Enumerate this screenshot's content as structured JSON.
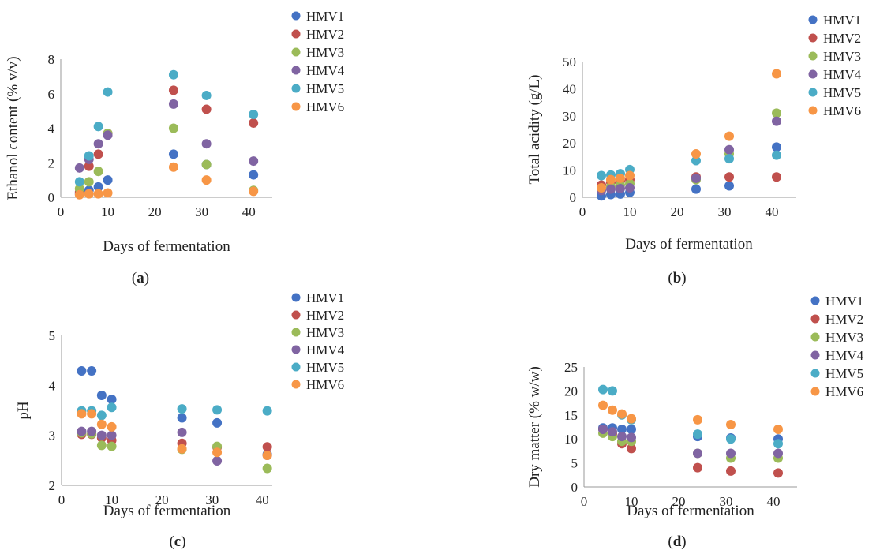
{
  "chart_data": [
    {
      "type": "scatter",
      "panel_label": "a",
      "xlabel": "Days of fermentation",
      "ylabel": "Ethanol content (% v/v)",
      "xlim": [
        0,
        45
      ],
      "ylim": [
        0,
        8
      ],
      "xticks": [
        "0",
        "10",
        "20",
        "30",
        "40"
      ],
      "yticks": [
        "0",
        "2",
        "4",
        "6",
        "8"
      ],
      "grid": false,
      "legend": "right",
      "x": [
        4,
        6,
        8,
        10,
        24,
        31,
        41
      ],
      "series": [
        {
          "name": "HMV1",
          "values": [
            0.2,
            0.4,
            0.6,
            1.0,
            2.5,
            1.9,
            1.3
          ]
        },
        {
          "name": "HMV2",
          "values": [
            0.3,
            1.8,
            2.5,
            3.7,
            6.2,
            5.1,
            4.3
          ]
        },
        {
          "name": "HMV3",
          "values": [
            0.5,
            0.9,
            1.5,
            3.7,
            4.0,
            1.9,
            0.4
          ]
        },
        {
          "name": "HMV4",
          "values": [
            1.7,
            2.2,
            3.1,
            3.6,
            5.4,
            3.1,
            2.1
          ]
        },
        {
          "name": "HMV5",
          "values": [
            0.9,
            2.4,
            4.1,
            6.1,
            7.1,
            5.9,
            4.8
          ]
        },
        {
          "name": "HMV6",
          "values": [
            0.15,
            0.2,
            0.2,
            0.25,
            1.75,
            1.0,
            0.35
          ]
        }
      ]
    },
    {
      "type": "scatter",
      "panel_label": "b",
      "xlabel": "Days of fermentation",
      "ylabel": "Total acidity (g/L)",
      "xlim": [
        0,
        45
      ],
      "ylim": [
        0,
        50
      ],
      "xticks": [
        "0",
        "10",
        "20",
        "30",
        "40"
      ],
      "yticks": [
        "0",
        "10",
        "20",
        "30",
        "40",
        "50"
      ],
      "grid": false,
      "legend": "right",
      "x": [
        4,
        6,
        8,
        10,
        24,
        31,
        41
      ],
      "series": [
        {
          "name": "HMV1",
          "values": [
            0.5,
            1.0,
            1.2,
            1.8,
            3.0,
            4.2,
            18.5
          ]
        },
        {
          "name": "HMV2",
          "values": [
            4.5,
            5.5,
            6.0,
            6.5,
            7.5,
            7.5,
            7.5
          ]
        },
        {
          "name": "HMV3",
          "values": [
            3.0,
            4.0,
            4.5,
            5.0,
            6.5,
            16.0,
            31.0
          ]
        },
        {
          "name": "HMV4",
          "values": [
            2.5,
            3.0,
            3.2,
            3.5,
            7.0,
            17.5,
            28.0
          ]
        },
        {
          "name": "HMV5",
          "values": [
            8.0,
            8.2,
            8.7,
            10.2,
            13.5,
            14.2,
            15.5
          ]
        },
        {
          "name": "HMV6",
          "values": [
            3.5,
            6.5,
            7.0,
            8.0,
            16.0,
            22.5,
            45.5
          ]
        }
      ]
    },
    {
      "type": "scatter",
      "panel_label": "c",
      "xlabel": "Days of fermentation",
      "ylabel": "pH",
      "xlim": [
        0,
        42
      ],
      "ylim": [
        2,
        5
      ],
      "xticks": [
        "0",
        "10",
        "20",
        "30",
        "40"
      ],
      "yticks": [
        "2",
        "3",
        "4",
        "5"
      ],
      "grid": false,
      "legend": "right",
      "x": [
        4,
        6,
        8,
        10,
        24,
        31,
        41
      ],
      "series": [
        {
          "name": "HMV1",
          "values": [
            4.29,
            4.29,
            3.8,
            3.72,
            3.35,
            3.25,
            2.62
          ]
        },
        {
          "name": "HMV2",
          "values": [
            3.02,
            3.02,
            2.95,
            2.9,
            2.84,
            2.76,
            2.77
          ]
        },
        {
          "name": "HMV3",
          "values": [
            3.05,
            3.03,
            2.8,
            2.78,
            2.72,
            2.78,
            2.34
          ]
        },
        {
          "name": "HMV4",
          "values": [
            3.08,
            3.08,
            3.0,
            3.0,
            3.06,
            2.49,
            2.6
          ]
        },
        {
          "name": "HMV5",
          "values": [
            3.49,
            3.49,
            3.4,
            3.56,
            3.53,
            3.51,
            3.49
          ]
        },
        {
          "name": "HMV6",
          "values": [
            3.43,
            3.43,
            3.22,
            3.17,
            2.73,
            2.66,
            2.6
          ]
        }
      ]
    },
    {
      "type": "scatter",
      "panel_label": "d",
      "xlabel": "Days of fermentation",
      "ylabel": "Dry matter (% w/w)",
      "xlim": [
        0,
        45
      ],
      "ylim": [
        0,
        25
      ],
      "xticks": [
        "0",
        "10",
        "20",
        "30",
        "40"
      ],
      "yticks": [
        "0",
        "5",
        "10",
        "15",
        "20",
        "25"
      ],
      "grid": false,
      "legend": "right",
      "x": [
        4,
        6,
        8,
        10,
        24,
        31,
        41
      ],
      "series": [
        {
          "name": "HMV1",
          "values": [
            12.3,
            12.3,
            12.0,
            12.0,
            10.5,
            10.2,
            10.0
          ]
        },
        {
          "name": "HMV2",
          "values": [
            12.0,
            11.0,
            9.0,
            8.0,
            4.0,
            3.3,
            2.9
          ]
        },
        {
          "name": "HMV3",
          "values": [
            11.2,
            10.5,
            9.5,
            9.5,
            7.0,
            6.0,
            6.0
          ]
        },
        {
          "name": "HMV4",
          "values": [
            12.0,
            11.5,
            10.5,
            10.3,
            7.0,
            7.0,
            7.0
          ]
        },
        {
          "name": "HMV5",
          "values": [
            20.3,
            20.0,
            15.0,
            14.0,
            11.0,
            10.0,
            9.0
          ]
        },
        {
          "name": "HMV6",
          "values": [
            17.0,
            16.0,
            15.2,
            14.2,
            14.0,
            13.0,
            12.0
          ]
        }
      ]
    }
  ],
  "colors": {
    "HMV1": "#4472c4",
    "HMV2": "#c0504d",
    "HMV3": "#9bbb59",
    "HMV4": "#8064a2",
    "HMV5": "#4bacc6",
    "HMV6": "#f79646"
  }
}
